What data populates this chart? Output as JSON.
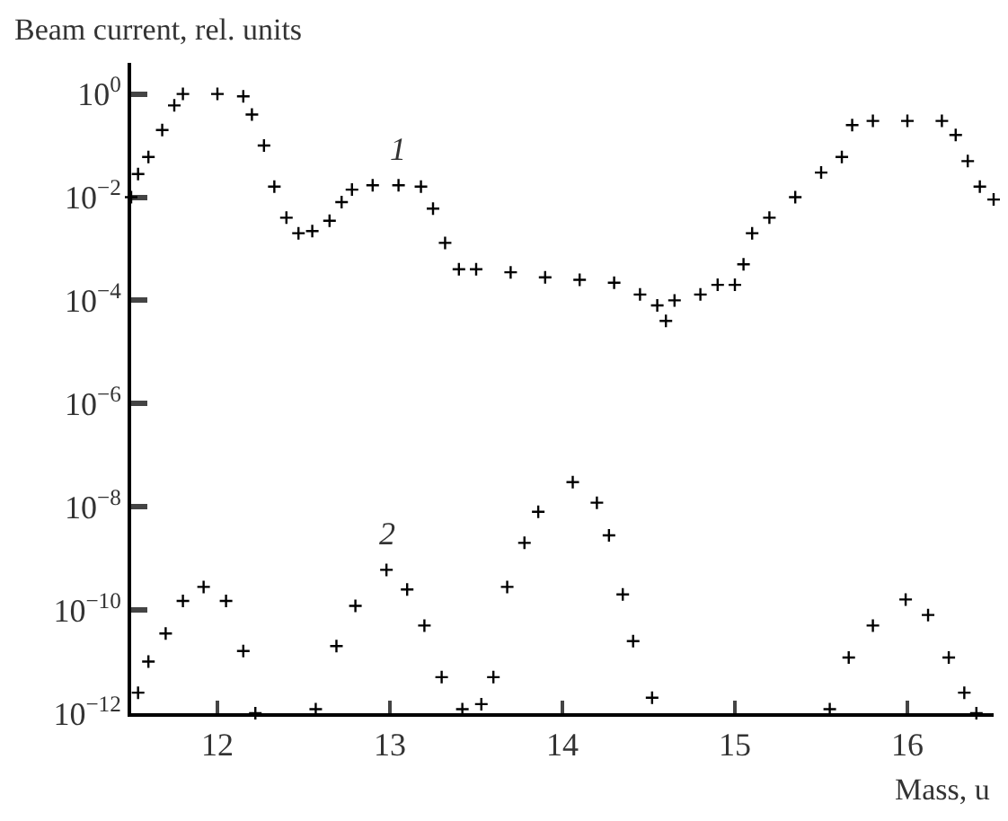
{
  "chart_data": {
    "type": "scatter",
    "xlabel": "Mass, u",
    "ylabel": "Beam current, rel. units",
    "log": "y",
    "marker": "cross",
    "xlim": [
      11.5,
      16.5
    ],
    "xticks": [
      12,
      13,
      14,
      15,
      16
    ],
    "ylim": [
      1e-12,
      4
    ],
    "yticks": [
      {
        "value": 1e-12,
        "label": "10$^{−12}$"
      },
      {
        "value": 1e-10,
        "label": "10$^{−10}$"
      },
      {
        "value": 1e-08,
        "label": "10$^{−8}$"
      },
      {
        "value": 1e-06,
        "label": "10$^{−6}$"
      },
      {
        "value": 0.0001,
        "label": "10$^{−4}$"
      },
      {
        "value": 0.01,
        "label": "10$^{−2}$"
      },
      {
        "value": 1,
        "label": "10$^{0}$"
      }
    ],
    "series": [
      {
        "color": "#000000",
        "x": [
          11.5,
          11.54,
          11.6,
          11.68,
          11.75,
          11.8,
          12.0,
          12.15,
          12.2,
          12.27,
          12.33,
          12.4,
          12.47,
          12.55,
          12.65,
          12.72,
          12.78,
          12.9,
          13.05,
          13.18,
          13.25,
          13.32,
          13.4,
          13.5,
          13.7,
          13.9,
          14.1,
          14.3,
          14.45,
          14.55,
          14.6,
          14.65,
          14.8,
          14.9,
          15.0,
          15.05,
          15.1,
          15.2,
          15.35,
          15.5,
          15.62,
          15.68,
          15.8,
          16.0,
          16.2,
          16.28,
          16.35,
          16.42,
          16.5
        ],
        "values": [
          0.01,
          0.028,
          0.06,
          0.2,
          0.6,
          1,
          1,
          0.9,
          0.4,
          0.1,
          0.016,
          0.004,
          0.002,
          0.0022,
          0.0035,
          0.008,
          0.014,
          0.017,
          0.017,
          0.016,
          0.006,
          0.0013,
          0.0004,
          0.0004,
          0.00035,
          0.00028,
          0.00025,
          0.00022,
          0.00013,
          8e-05,
          4e-05,
          0.0001,
          0.00013,
          0.0002,
          0.0002,
          0.0005,
          0.002,
          0.004,
          0.01,
          0.03,
          0.06,
          0.25,
          0.3,
          0.3,
          0.3,
          0.16,
          0.05,
          0.016,
          0.009
        ]
      },
      {
        "color": "#000000",
        "x": [
          11.54,
          11.6,
          11.7,
          11.8,
          11.92,
          12.05,
          12.15,
          12.22,
          12.4,
          12.57,
          12.69,
          12.8,
          12.98,
          13.1,
          13.2,
          13.3,
          13.42,
          13.48,
          13.53,
          13.6,
          13.68,
          13.78,
          13.86,
          14.06,
          14.2,
          14.27,
          14.35,
          14.41,
          14.52,
          15.0,
          15.55,
          15.66,
          15.8,
          15.99,
          16.12,
          16.24,
          16.33,
          16.4
        ],
        "values": [
          2.5e-12,
          1e-11,
          3.5e-11,
          1.5e-10,
          2.8e-10,
          1.5e-10,
          1.6e-11,
          1e-12,
          null,
          1.2e-12,
          2e-11,
          1.2e-10,
          6e-10,
          2.5e-10,
          5e-11,
          5e-12,
          1.2e-12,
          null,
          1.5e-12,
          5e-12,
          2.8e-10,
          2e-09,
          8e-09,
          3e-08,
          1.2e-08,
          2.8e-09,
          2e-10,
          2.5e-11,
          2e-12,
          null,
          1.2e-12,
          1.2e-11,
          5e-11,
          1.6e-10,
          8e-11,
          1.2e-11,
          2.5e-12,
          1e-12
        ]
      }
    ],
    "annotations": [
      {
        "text": "1",
        "x": 13.05,
        "y": 0.017
      },
      {
        "text": "2",
        "x": 12.98,
        "y": 6e-10
      }
    ]
  }
}
